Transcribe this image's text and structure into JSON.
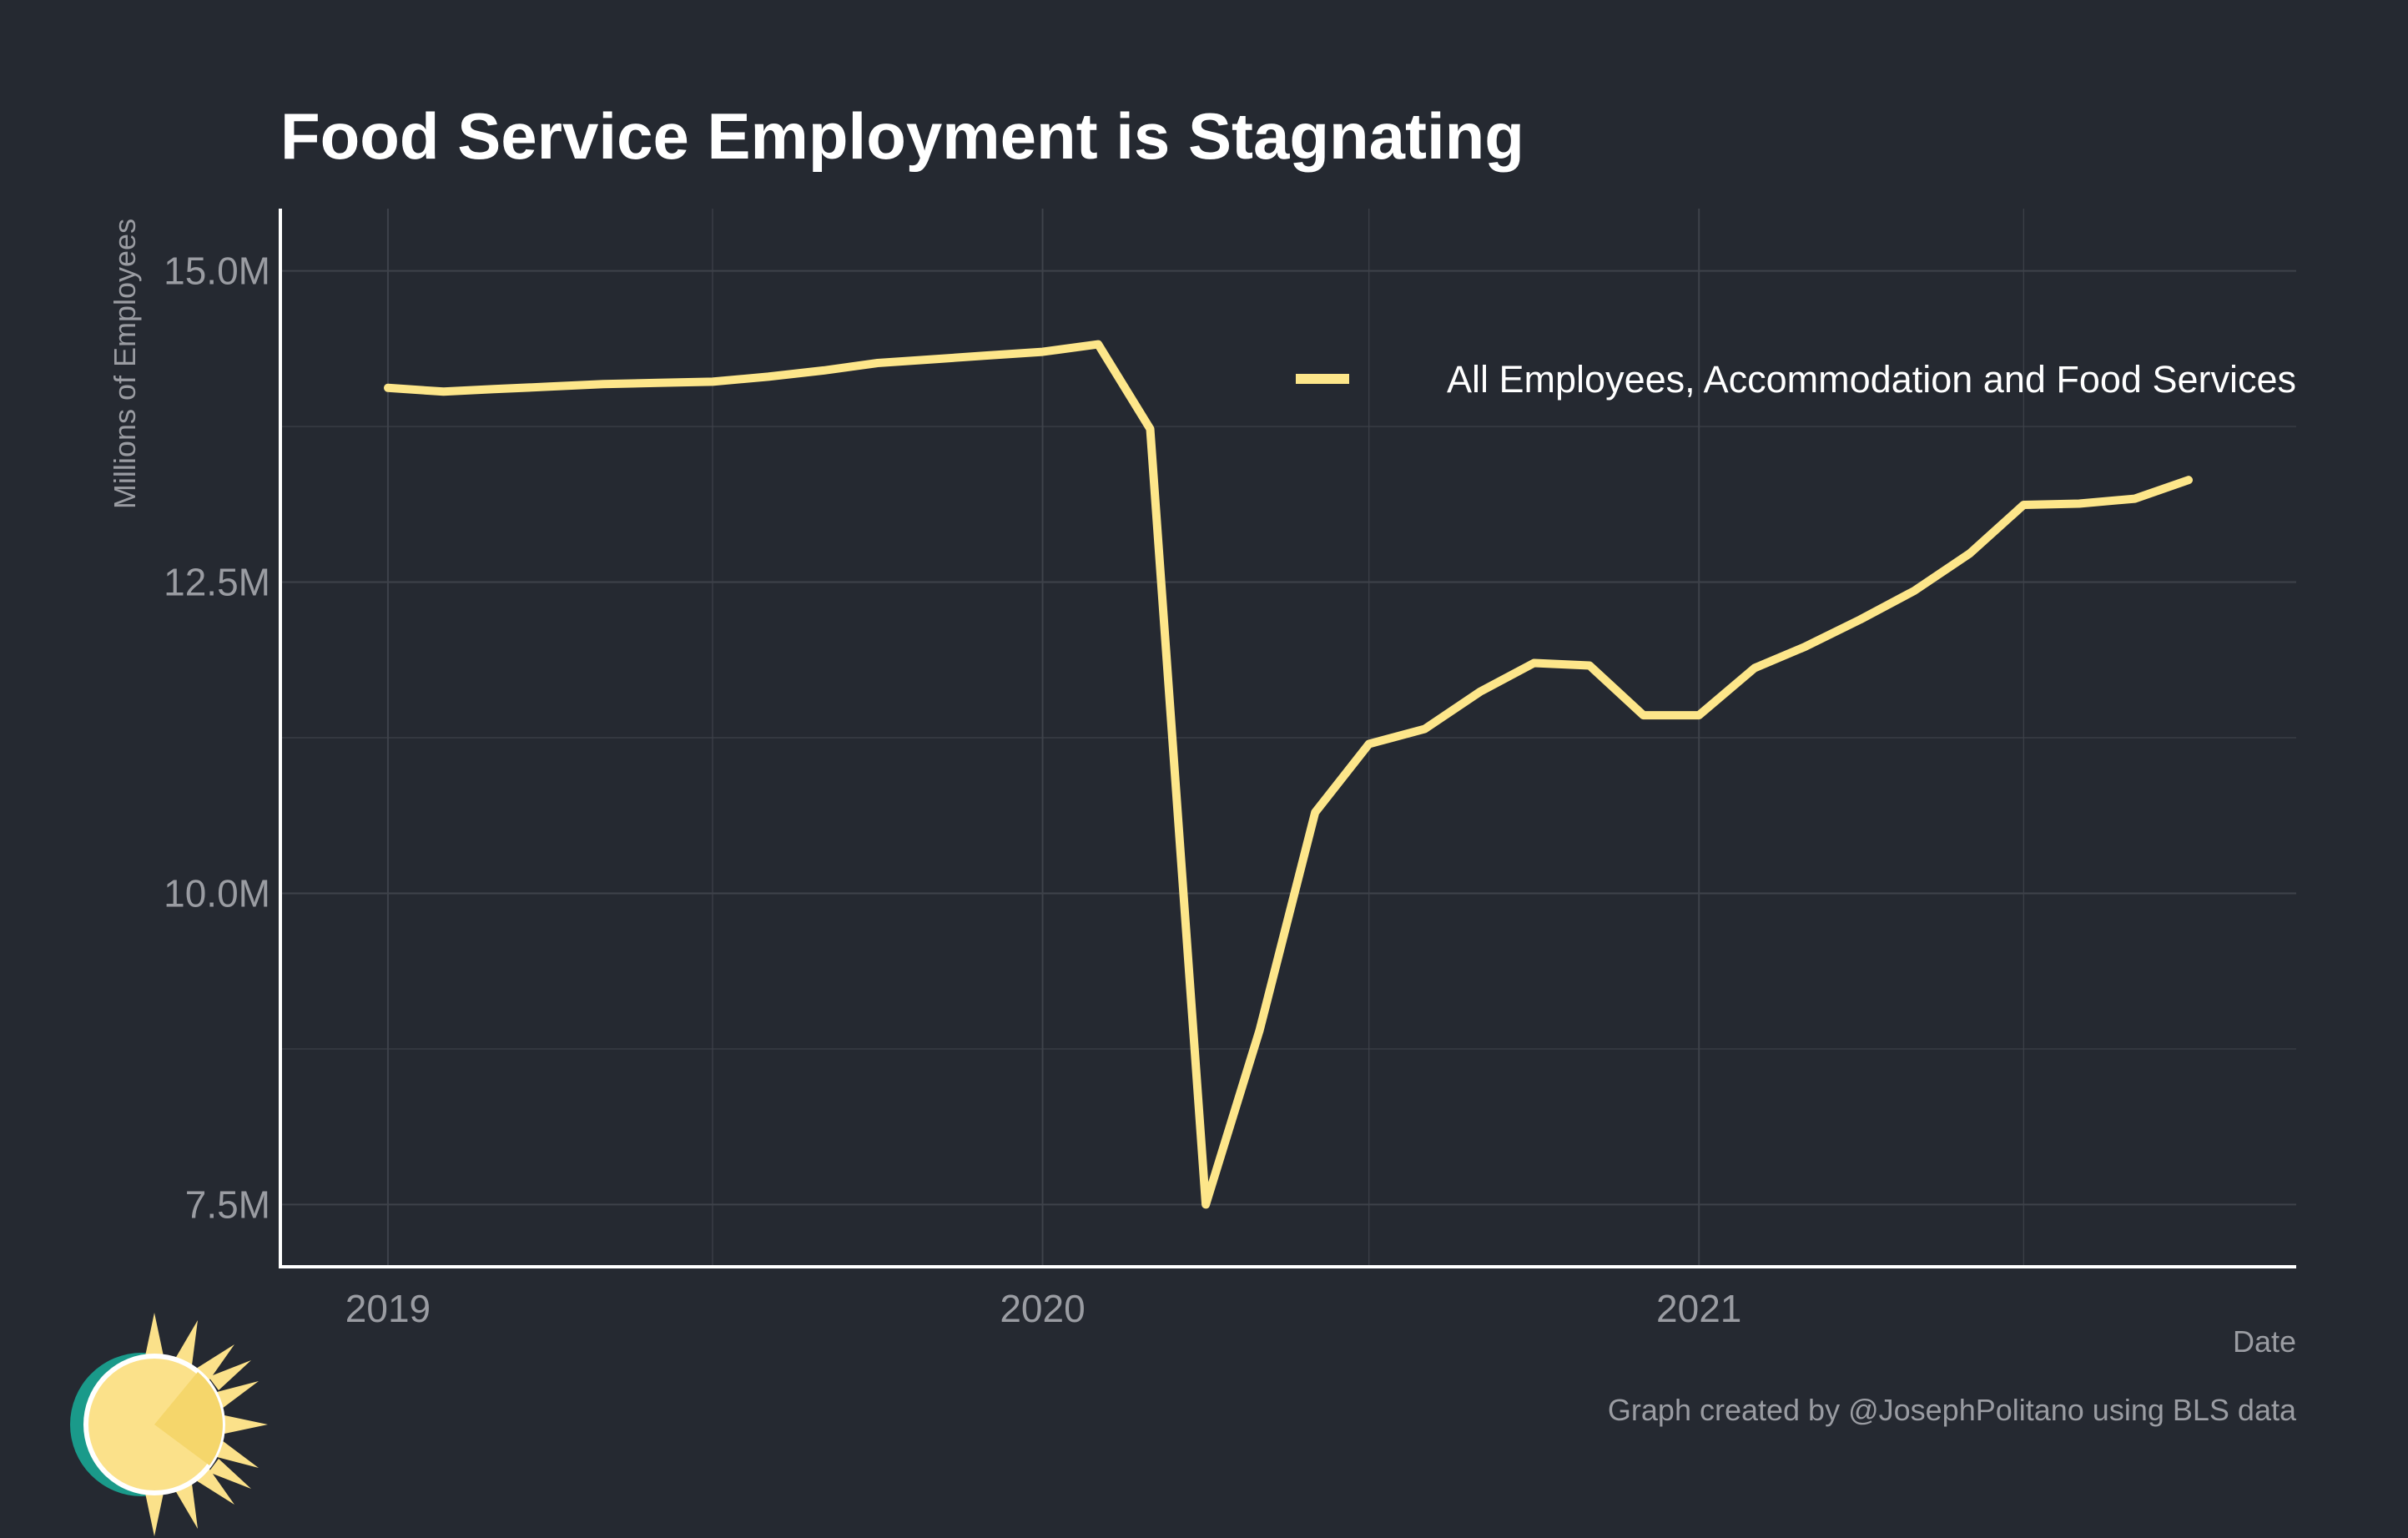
{
  "colors": {
    "background": "#252931",
    "grid": "#3e424a",
    "axis": "#ffffff",
    "line": "#fde68a",
    "text_muted": "#9a9ca2",
    "text_title": "#ffffff",
    "logo_teal": "#1a9a8a",
    "logo_sun": "#fbe18a",
    "logo_sun_dark": "#f5d66b"
  },
  "chart_data": {
    "type": "line",
    "title": "Food Service Employment is Stagnating",
    "xlabel": "Date",
    "ylabel": "Millions of Employees",
    "caption": "Graph created by @JosephPolitano using BLS data",
    "x_ticks": [
      "2019",
      "2020",
      "2021"
    ],
    "y_ticks": [
      {
        "value": 7.5,
        "label": "7.5M"
      },
      {
        "value": 10.0,
        "label": "10.0M"
      },
      {
        "value": 12.5,
        "label": "12.5M"
      },
      {
        "value": 15.0,
        "label": "15.0M"
      }
    ],
    "y_minor_ticks": [
      8.75,
      11.25,
      13.75
    ],
    "x_minor_ticks": [
      "2019-07-01",
      "2020-07-01",
      "2021-07-01"
    ],
    "ylim": [
      7.0,
      15.5
    ],
    "xlim": [
      "2018-11-02",
      "2021-11-30"
    ],
    "grid": true,
    "legend_position": "top-right",
    "series": [
      {
        "name": "All Employees, Accommodation and Food Services",
        "x": [
          "2019-01-01",
          "2019-02-01",
          "2019-03-01",
          "2019-04-01",
          "2019-05-01",
          "2019-06-01",
          "2019-07-01",
          "2019-08-01",
          "2019-09-01",
          "2019-10-01",
          "2019-11-01",
          "2019-12-01",
          "2020-01-01",
          "2020-02-01",
          "2020-03-01",
          "2020-04-01",
          "2020-05-01",
          "2020-06-01",
          "2020-07-01",
          "2020-08-01",
          "2020-09-01",
          "2020-10-01",
          "2020-11-01",
          "2020-12-01",
          "2021-01-01",
          "2021-02-01",
          "2021-03-01",
          "2021-04-01",
          "2021-05-01",
          "2021-06-01",
          "2021-07-01",
          "2021-08-01",
          "2021-09-01",
          "2021-10-01"
        ],
        "y": [
          14.06,
          14.03,
          14.05,
          14.07,
          14.09,
          14.1,
          14.11,
          14.15,
          14.2,
          14.26,
          14.29,
          14.32,
          14.35,
          14.41,
          13.73,
          7.5,
          8.9,
          10.65,
          11.2,
          11.32,
          11.62,
          11.85,
          11.83,
          11.43,
          11.43,
          11.81,
          11.98,
          12.2,
          12.43,
          12.73,
          13.12,
          13.13,
          13.17,
          13.32
        ]
      }
    ]
  }
}
